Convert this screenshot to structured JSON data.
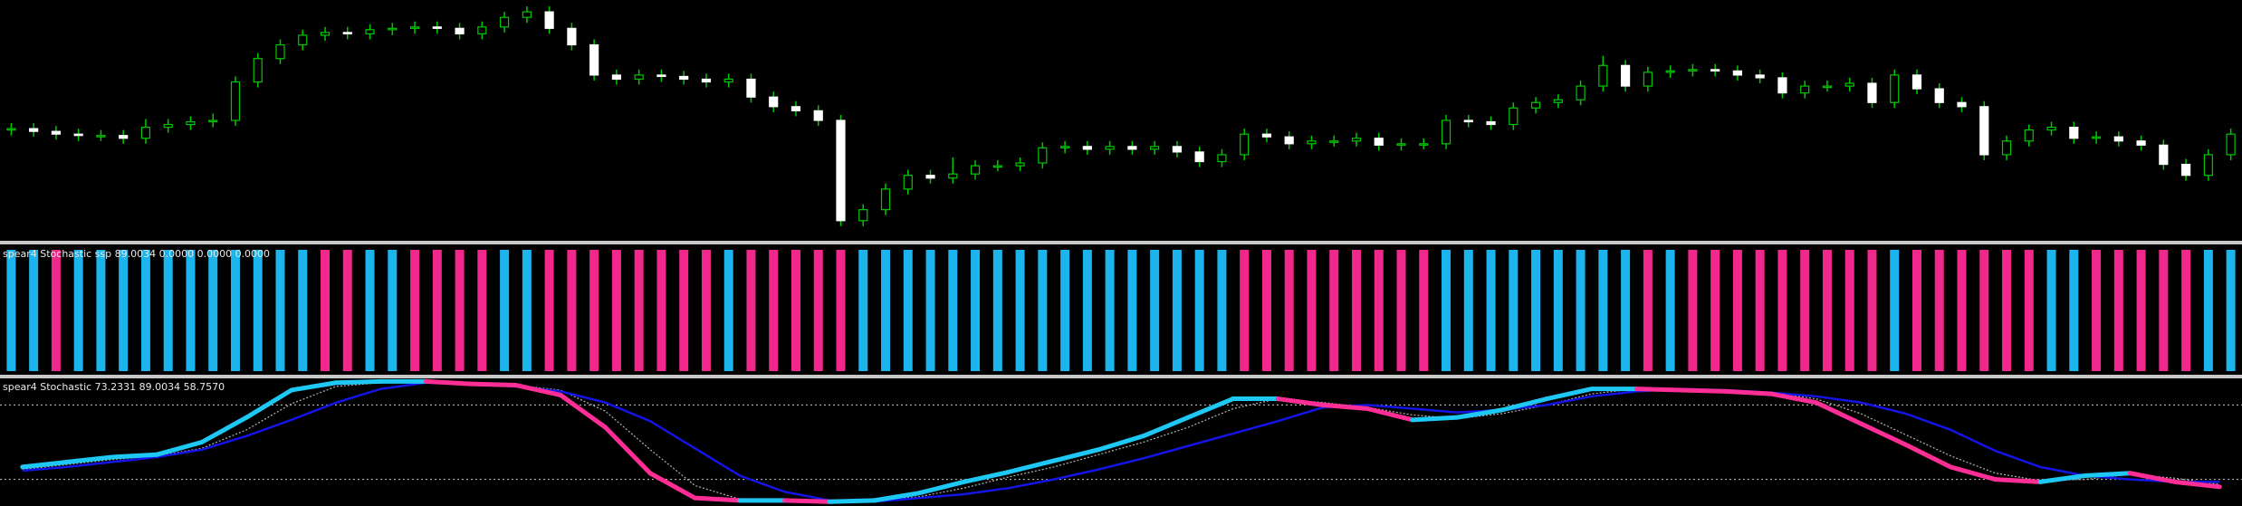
{
  "chart_data": [
    {
      "type": "candlestick",
      "ylim": [
        0,
        170
      ],
      "up_color": "#000000",
      "down_color": "#ffffff",
      "wick_color": "#00c800",
      "open": [
        78,
        79,
        77,
        75,
        74,
        74,
        72,
        80,
        82,
        84,
        85,
        113,
        130,
        140,
        147,
        149,
        148,
        151,
        152,
        153,
        152,
        148,
        153,
        160,
        164,
        152,
        140,
        118,
        115,
        118,
        117,
        115,
        113,
        115,
        102,
        95,
        92,
        85,
        12,
        20,
        35,
        45,
        43,
        46,
        52,
        52,
        54,
        65,
        66,
        64,
        66,
        64,
        66,
        62,
        55,
        60,
        75,
        73,
        68,
        70,
        70,
        72,
        67,
        68,
        68,
        85,
        84,
        82,
        94,
        98,
        100,
        110,
        125,
        110,
        120,
        121,
        122,
        121,
        118,
        116,
        105,
        110,
        110,
        112,
        98,
        118,
        108,
        98,
        95,
        60,
        70,
        78,
        80,
        72,
        73,
        70,
        67,
        53,
        45,
        60
      ],
      "high": [
        83,
        83,
        81,
        79,
        78,
        78,
        86,
        86,
        88,
        90,
        117,
        134,
        144,
        151,
        153,
        153,
        155,
        156,
        157,
        157,
        156,
        157,
        164,
        168,
        168,
        156,
        144,
        122,
        122,
        122,
        121,
        119,
        119,
        119,
        106,
        99,
        96,
        89,
        24,
        39,
        49,
        49,
        58,
        56,
        56,
        58,
        69,
        70,
        70,
        70,
        70,
        70,
        70,
        66,
        64,
        79,
        79,
        77,
        74,
        74,
        76,
        76,
        72,
        72,
        89,
        89,
        88,
        98,
        102,
        104,
        114,
        132,
        129,
        124,
        125,
        126,
        126,
        125,
        122,
        120,
        114,
        114,
        116,
        116,
        122,
        122,
        112,
        102,
        99,
        74,
        82,
        84,
        84,
        77,
        77,
        74,
        71,
        57,
        64,
        79
      ],
      "low": [
        74,
        73,
        71,
        70,
        70,
        68,
        68,
        76,
        78,
        80,
        81,
        109,
        126,
        136,
        143,
        144,
        144,
        147,
        148,
        148,
        144,
        144,
        149,
        156,
        148,
        136,
        114,
        111,
        111,
        113,
        111,
        109,
        109,
        98,
        91,
        88,
        81,
        8,
        8,
        16,
        31,
        39,
        39,
        42,
        48,
        48,
        50,
        61,
        60,
        60,
        60,
        60,
        58,
        51,
        51,
        56,
        69,
        64,
        64,
        66,
        66,
        63,
        63,
        64,
        64,
        80,
        78,
        78,
        90,
        94,
        96,
        106,
        106,
        106,
        116,
        117,
        117,
        114,
        112,
        101,
        101,
        106,
        106,
        94,
        94,
        104,
        94,
        91,
        56,
        56,
        66,
        74,
        68,
        68,
        66,
        63,
        49,
        41,
        41,
        56
      ],
      "close": [
        79,
        77,
        75,
        74,
        74,
        72,
        80,
        82,
        84,
        85,
        113,
        130,
        140,
        147,
        149,
        148,
        151,
        152,
        153,
        152,
        148,
        153,
        160,
        164,
        152,
        140,
        118,
        115,
        118,
        117,
        115,
        113,
        115,
        102,
        95,
        92,
        85,
        12,
        20,
        35,
        45,
        43,
        46,
        52,
        52,
        54,
        65,
        66,
        64,
        66,
        64,
        66,
        62,
        55,
        60,
        75,
        73,
        68,
        70,
        70,
        72,
        67,
        68,
        68,
        85,
        84,
        82,
        94,
        98,
        100,
        110,
        125,
        110,
        120,
        121,
        122,
        121,
        118,
        116,
        105,
        110,
        110,
        112,
        98,
        118,
        108,
        98,
        95,
        60,
        70,
        78,
        80,
        72,
        73,
        70,
        67,
        53,
        45,
        60,
        75
      ]
    },
    {
      "type": "state_bar",
      "title": "spear4 Stochastic ssp 89.0034 0.0000 0.0000 0.0000",
      "ylim": [
        0,
        1
      ],
      "colors": [
        "#f0288c",
        "#1cb4ec"
      ],
      "values": [
        1,
        1,
        0,
        1,
        1,
        1,
        1,
        1,
        1,
        1,
        1,
        1,
        1,
        1,
        0,
        0,
        1,
        1,
        0,
        0,
        0,
        0,
        1,
        1,
        0,
        0,
        0,
        0,
        0,
        0,
        0,
        0,
        1,
        0,
        0,
        0,
        0,
        0,
        1,
        1,
        1,
        1,
        1,
        1,
        1,
        1,
        1,
        1,
        1,
        1,
        1,
        1,
        1,
        1,
        1,
        0,
        0,
        0,
        0,
        0,
        0,
        0,
        0,
        0,
        1,
        1,
        1,
        1,
        1,
        1,
        1,
        1,
        1,
        0,
        1,
        0,
        0,
        0,
        0,
        0,
        0,
        0,
        0,
        0,
        1,
        0,
        0,
        0,
        0,
        0,
        0,
        1,
        1,
        0,
        0,
        0,
        0,
        0,
        1,
        1
      ]
    },
    {
      "type": "line",
      "title": "spear4 Stochastic 73.2331 89.0034 58.7570",
      "ylim": [
        0,
        100
      ],
      "levels": [
        80,
        20
      ],
      "series": [
        {
          "up_color": "#1ec8f5",
          "down_color": "#ff2e96",
          "values": [
            30,
            34,
            38,
            40,
            50,
            70,
            92,
            98,
            99,
            99,
            97,
            96,
            88,
            62,
            25,
            5,
            3,
            3,
            2,
            3,
            9,
            18,
            26,
            35,
            44,
            55,
            70,
            85,
            85,
            80,
            77,
            68,
            70,
            76,
            85,
            93,
            93,
            92,
            91,
            89,
            82,
            65,
            48,
            30,
            20,
            18,
            23,
            25,
            18,
            14
          ]
        },
        {
          "color": "#1414e6",
          "values": [
            27,
            30,
            34,
            38,
            44,
            55,
            68,
            82,
            93,
            98,
            97,
            95,
            91,
            82,
            67,
            45,
            23,
            10,
            3,
            2,
            5,
            8,
            13,
            20,
            28,
            37,
            47,
            57,
            67,
            78,
            80,
            77,
            74,
            76,
            80,
            87,
            91,
            93,
            92,
            90,
            87,
            82,
            73,
            60,
            43,
            30,
            23,
            20,
            18,
            18
          ]
        },
        {
          "color": "#b4b4b4",
          "dash": true,
          "values": [
            28,
            32,
            36,
            39,
            45,
            60,
            81,
            95,
            98,
            99,
            98,
            96,
            92,
            75,
            44,
            15,
            4,
            3,
            3,
            3,
            6,
            13,
            22,
            30,
            40,
            50,
            62,
            77,
            85,
            82,
            78,
            72,
            69,
            73,
            80,
            89,
            93,
            92,
            91,
            90,
            85,
            73,
            56,
            39,
            25,
            19,
            20,
            24,
            21,
            16
          ]
        }
      ]
    }
  ]
}
